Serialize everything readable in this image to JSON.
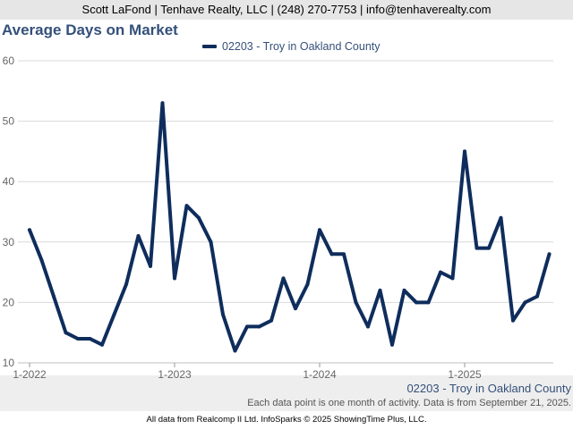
{
  "header": {
    "contact": "Scott LaFond | Tenhave Realty, LLC | (248) 270-7753 | info@tenhaverealty.com"
  },
  "footer": {
    "series_caption": "02203 - Troy in Oakland County",
    "note": "Each data point is one month of activity. Data is from September 21, 2025.",
    "credit": "All data from Realcomp II Ltd. InfoSparks © 2025 ShowingTime Plus, LLC."
  },
  "colors": {
    "series_line": "#0f2d5c",
    "title": "#34507a",
    "grid": "#d9d9d9"
  },
  "chart_data": {
    "type": "line",
    "title": "Average Days on Market",
    "xlabel": "",
    "ylabel": "",
    "ylim": [
      10,
      60
    ],
    "y_ticks": [
      10,
      20,
      30,
      40,
      50,
      60
    ],
    "x_ticks": [
      "1-2022",
      "1-2023",
      "1-2024",
      "1-2025"
    ],
    "grid": true,
    "legend_position": "top",
    "series": [
      {
        "name": "02203 - Troy in Oakland County",
        "x": [
          "2022-01",
          "2022-02",
          "2022-03",
          "2022-04",
          "2022-05",
          "2022-06",
          "2022-07",
          "2022-08",
          "2022-09",
          "2022-10",
          "2022-11",
          "2022-12",
          "2023-01",
          "2023-02",
          "2023-03",
          "2023-04",
          "2023-05",
          "2023-06",
          "2023-07",
          "2023-08",
          "2023-09",
          "2023-10",
          "2023-11",
          "2023-12",
          "2024-01",
          "2024-02",
          "2024-03",
          "2024-04",
          "2024-05",
          "2024-06",
          "2024-07",
          "2024-08",
          "2024-09",
          "2024-10",
          "2024-11",
          "2024-12",
          "2025-01",
          "2025-02",
          "2025-03",
          "2025-04",
          "2025-05",
          "2025-06",
          "2025-07",
          "2025-08"
        ],
        "values": [
          32,
          27,
          21,
          15,
          14,
          14,
          13,
          18,
          23,
          31,
          26,
          53,
          24,
          36,
          34,
          30,
          18,
          12,
          16,
          16,
          17,
          24,
          19,
          23,
          32,
          28,
          28,
          20,
          16,
          22,
          13,
          22,
          20,
          20,
          25,
          24,
          45,
          29,
          29,
          34,
          17,
          20,
          21,
          28
        ]
      }
    ]
  }
}
